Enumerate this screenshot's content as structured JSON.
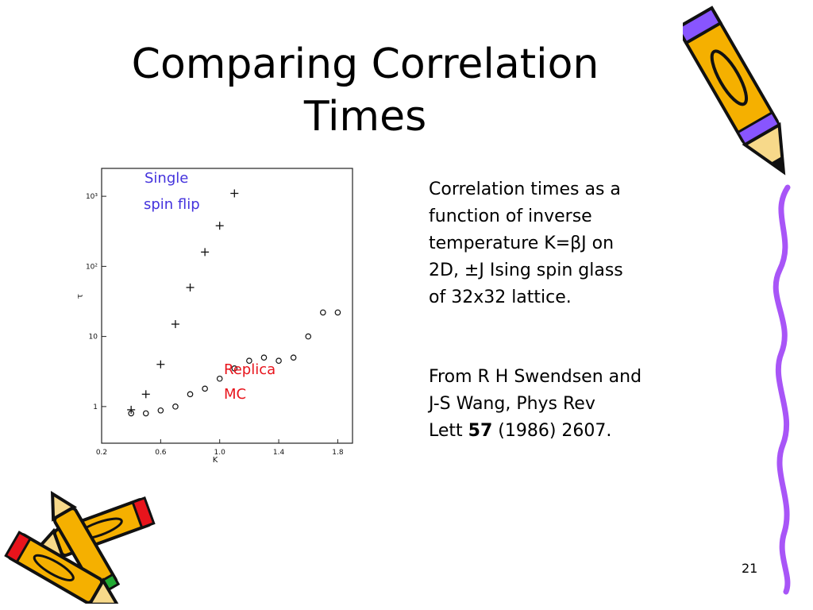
{
  "slide": {
    "title_line1": "Comparing Correlation",
    "title_line2": "Times",
    "page_number": "21"
  },
  "caption": {
    "line1": "Correlation times as a",
    "line2": "function of inverse",
    "line3": "temperature K=βJ on",
    "line4": "2D, ±J  Ising spin glass",
    "line5": "of 32x32 lattice.",
    "source_line1": "From R H Swendsen and",
    "source_line2": "J-S Wang, Phys Rev",
    "source_line3_prefix": "Lett ",
    "source_volume": "57",
    "source_line3_suffix": " (1986) 2607."
  },
  "colors": {
    "single_spin_flip_label": "#4433dd",
    "replica_mc_label": "#e8141c",
    "pencil_body": "#f5b000",
    "pencil_tip": "#8855ff",
    "squiggle": "#a855f7"
  },
  "icons": [
    "pencil-icon",
    "pencil-icon",
    "pencil-icon"
  ],
  "chart_data": {
    "type": "scatter",
    "xlabel": "K",
    "ylabel": "τ",
    "xlim": [
      0.2,
      1.9
    ],
    "ylim": [
      0.3,
      2500
    ],
    "yscale": "log",
    "x_ticks": [
      {
        "value": 0.2,
        "label": "0.2"
      },
      {
        "value": 0.6,
        "label": "0.6"
      },
      {
        "value": 1.0,
        "label": "1.0"
      },
      {
        "value": 1.4,
        "label": "1.4"
      },
      {
        "value": 1.8,
        "label": "1.8"
      }
    ],
    "y_ticks": [
      {
        "value": 1,
        "label": "1"
      },
      {
        "value": 10,
        "label": "10"
      },
      {
        "value": 100,
        "label": "10²"
      },
      {
        "value": 1000,
        "label": "10³"
      }
    ],
    "series": [
      {
        "name": "Single spin flip",
        "marker": "+",
        "x": [
          0.4,
          0.5,
          0.6,
          0.7,
          0.8,
          0.9,
          1.0,
          1.1
        ],
        "y": [
          0.9,
          1.5,
          4,
          15,
          50,
          160,
          380,
          1100
        ]
      },
      {
        "name": "Replica MC",
        "marker": "o",
        "x": [
          0.4,
          0.5,
          0.6,
          0.7,
          0.8,
          0.9,
          1.0,
          1.1,
          1.2,
          1.3,
          1.4,
          1.5,
          1.6,
          1.7,
          1.8
        ],
        "y": [
          0.8,
          0.8,
          0.88,
          1.0,
          1.5,
          1.8,
          2.5,
          3.5,
          4.5,
          5.0,
          4.5,
          5.0,
          10,
          22,
          22
        ]
      }
    ],
    "annotations": [
      {
        "text_line1": "Single",
        "text_line2": "spin flip"
      },
      {
        "text_line1": "Replica",
        "text_line2": "MC"
      }
    ]
  }
}
